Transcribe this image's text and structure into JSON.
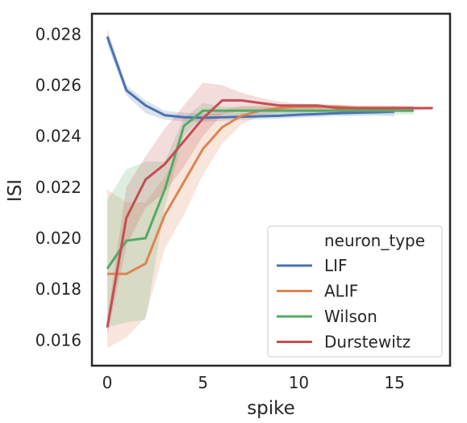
{
  "chart_data": {
    "type": "line",
    "xlabel": "spike",
    "ylabel": "ISI",
    "xlim": [
      -0.8,
      17.9
    ],
    "ylim": [
      0.015,
      0.0288
    ],
    "x_ticks": [
      0,
      5,
      10,
      15
    ],
    "y_ticks": [
      "0.016",
      "0.018",
      "0.020",
      "0.022",
      "0.024",
      "0.026",
      "0.028"
    ],
    "grid": false,
    "legend": {
      "title": "neuron_type",
      "placement": "bottom-right"
    },
    "series": [
      {
        "name": "LIF",
        "color": "#4c72b0",
        "x": [
          0,
          1,
          2,
          3,
          4,
          5,
          6,
          7,
          8,
          9,
          10,
          11,
          12,
          13,
          14,
          15
        ],
        "y": [
          0.0279,
          0.0258,
          0.0252,
          0.02482,
          0.02474,
          0.02472,
          0.02474,
          0.02476,
          0.02478,
          0.0248,
          0.02484,
          0.02487,
          0.0249,
          0.02492,
          0.02494,
          0.02496
        ],
        "ci_low": [
          0.0276,
          0.0256,
          0.0249,
          0.02465,
          0.02457,
          0.02456,
          0.0246,
          0.02463,
          0.02466,
          0.02469,
          0.02472,
          0.02475,
          0.02478,
          0.02479,
          0.0248,
          0.02478
        ],
        "ci_high": [
          0.0282,
          0.026,
          0.0254,
          0.025,
          0.02492,
          0.02488,
          0.02488,
          0.0249,
          0.02492,
          0.02494,
          0.02496,
          0.02499,
          0.02502,
          0.02505,
          0.02508,
          0.02518
        ]
      },
      {
        "name": "ALIF",
        "color": "#dd8452",
        "x": [
          0,
          1,
          2,
          3,
          4,
          5,
          6,
          7,
          8,
          9,
          10,
          11,
          12,
          13,
          14,
          15,
          16
        ],
        "y": [
          0.0186,
          0.0186,
          0.019,
          0.0209,
          0.0222,
          0.0235,
          0.02435,
          0.0248,
          0.025,
          0.0251,
          0.02515,
          0.02515,
          0.02515,
          0.0251,
          0.0251,
          0.0251,
          0.0251
        ],
        "ci_low": [
          0.0157,
          0.0161,
          0.0169,
          0.0196,
          0.0209,
          0.0225,
          0.0237,
          0.02445,
          0.0248,
          0.02495,
          0.025,
          0.02505,
          0.02505,
          0.025,
          0.025,
          0.025,
          0.025
        ],
        "ci_high": [
          0.0219,
          0.0214,
          0.0214,
          0.0224,
          0.0237,
          0.0248,
          0.025,
          0.02518,
          0.02522,
          0.02525,
          0.02525,
          0.02525,
          0.02525,
          0.0252,
          0.0252,
          0.0252,
          0.0252
        ]
      },
      {
        "name": "Wilson",
        "color": "#55a868",
        "x": [
          0,
          1,
          2,
          3,
          4,
          5,
          6,
          7,
          8,
          9,
          10,
          11,
          12,
          13,
          14,
          15,
          16
        ],
        "y": [
          0.0188,
          0.0199,
          0.02,
          0.0219,
          0.0244,
          0.025,
          0.025,
          0.025,
          0.025,
          0.025,
          0.025,
          0.025,
          0.025,
          0.025,
          0.025,
          0.025,
          0.025
        ],
        "ci_low": [
          0.0165,
          0.0167,
          0.0168,
          0.0212,
          0.024,
          0.0248,
          0.02485,
          0.02485,
          0.02485,
          0.02485,
          0.02485,
          0.02485,
          0.02485,
          0.02485,
          0.02485,
          0.02485,
          0.02485
        ],
        "ci_high": [
          0.0215,
          0.0227,
          0.023,
          0.023,
          0.0247,
          0.0253,
          0.02515,
          0.02515,
          0.02515,
          0.02515,
          0.02515,
          0.02515,
          0.02515,
          0.02515,
          0.02515,
          0.02515,
          0.02515
        ]
      },
      {
        "name": "Durstewitz",
        "color": "#c44e52",
        "x": [
          0,
          1,
          2,
          3,
          4,
          5,
          6,
          7,
          8,
          9,
          10,
          11,
          12,
          13,
          14,
          15,
          16,
          17
        ],
        "y": [
          0.0165,
          0.0208,
          0.0223,
          0.0229,
          0.0238,
          0.0247,
          0.0254,
          0.0254,
          0.0253,
          0.0252,
          0.0252,
          0.0252,
          0.0251,
          0.0251,
          0.0251,
          0.0251,
          0.0251,
          0.0251
        ],
        "ci_low": [
          0.0162,
          0.0197,
          0.0212,
          0.0218,
          0.0228,
          0.024,
          0.02485,
          0.025,
          0.025,
          0.025,
          0.025,
          0.025,
          0.025,
          0.025,
          0.025,
          0.025,
          0.025,
          0.02505
        ],
        "ci_high": [
          0.0169,
          0.022,
          0.0232,
          0.0243,
          0.0252,
          0.0261,
          0.026,
          0.0257,
          0.0255,
          0.02535,
          0.02528,
          0.02525,
          0.02522,
          0.0252,
          0.02518,
          0.02518,
          0.02515,
          0.02512
        ]
      }
    ]
  }
}
